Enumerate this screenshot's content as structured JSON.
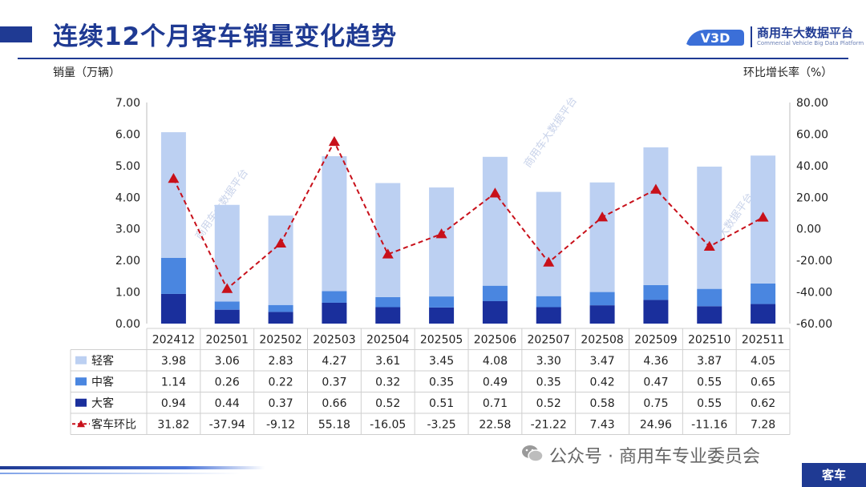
{
  "header": {
    "title": "连续12个月客车销量变化趋势",
    "logo_badge": "V3D",
    "logo_cn": "商用车大数据平台",
    "logo_en": "Commercial Vehicle Big Data Platform"
  },
  "chart_data": {
    "type": "bar",
    "stacked": true,
    "categories": [
      "202412",
      "202501",
      "202502",
      "202503",
      "202504",
      "202505",
      "202506",
      "202507",
      "202508",
      "202509",
      "202510",
      "202511"
    ],
    "ylabel": "销量（万辆）",
    "y2label": "环比增长率（%）",
    "ylim": [
      0,
      7
    ],
    "y2lim": [
      -60,
      80
    ],
    "yticks": [
      "0.00",
      "1.00",
      "2.00",
      "3.00",
      "4.00",
      "5.00",
      "6.00",
      "7.00"
    ],
    "y2ticks": [
      "-60.00",
      "-40.00",
      "-20.00",
      "0.00",
      "20.00",
      "40.00",
      "60.00",
      "80.00"
    ],
    "series": [
      {
        "name": "大客",
        "values": [
          0.94,
          0.44,
          0.37,
          0.66,
          0.52,
          0.51,
          0.71,
          0.52,
          0.58,
          0.75,
          0.55,
          0.62
        ],
        "labels": [
          "0.94",
          "0.44",
          "0.37",
          "0.66",
          "0.52",
          "0.51",
          "0.71",
          "0.52",
          "0.58",
          "0.75",
          "0.55",
          "0.62"
        ],
        "color": "#1a2f9c"
      },
      {
        "name": "中客",
        "values": [
          1.14,
          0.26,
          0.22,
          0.37,
          0.32,
          0.35,
          0.49,
          0.35,
          0.42,
          0.47,
          0.55,
          0.65
        ],
        "labels": [
          "1.14",
          "0.26",
          "0.22",
          "0.37",
          "0.32",
          "0.35",
          "0.49",
          "0.35",
          "0.42",
          "0.47",
          "0.55",
          "0.65"
        ],
        "color": "#4a86e0"
      },
      {
        "name": "轻客",
        "values": [
          3.98,
          3.06,
          2.83,
          4.27,
          3.61,
          3.45,
          4.08,
          3.3,
          3.47,
          4.36,
          3.87,
          4.05
        ],
        "labels": [
          "3.98",
          "3.06",
          "2.83",
          "4.27",
          "3.61",
          "3.45",
          "4.08",
          "3.30",
          "3.47",
          "4.36",
          "3.87",
          "4.05"
        ],
        "color": "#bcd0f2"
      }
    ],
    "line": {
      "name": "客车环比",
      "values": [
        31.82,
        -37.94,
        -9.12,
        55.18,
        -16.05,
        -3.25,
        22.58,
        -21.22,
        7.43,
        24.96,
        -11.16,
        7.28
      ],
      "labels": [
        "31.82",
        "-37.94",
        "-9.12",
        "55.18",
        "-16.05",
        "-3.25",
        "22.58",
        "-21.22",
        "7.43",
        "24.96",
        "-11.16",
        "7.28"
      ],
      "color": "#c8101a",
      "axis": "right"
    },
    "table_rows": [
      "轻客",
      "中客",
      "大客",
      "客车环比"
    ],
    "grid": false,
    "legend": "table-left"
  },
  "watermark": {
    "text": "商用车大数据平台"
  },
  "footer": {
    "source": "公众号 · 商用车专业委员会",
    "tag": "客车"
  }
}
